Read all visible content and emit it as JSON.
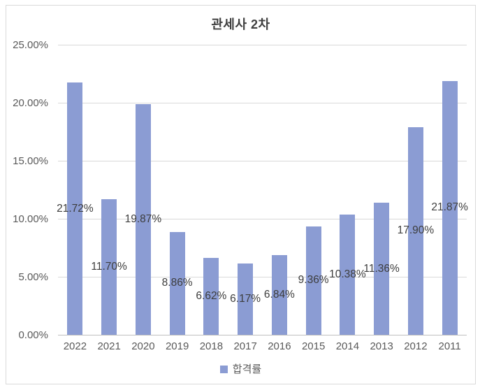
{
  "chart_data": {
    "type": "bar",
    "title": "관세사 2차",
    "xlabel": "",
    "ylabel": "",
    "categories": [
      "2022",
      "2021",
      "2020",
      "2019",
      "2018",
      "2017",
      "2016",
      "2015",
      "2014",
      "2013",
      "2012",
      "2011"
    ],
    "series": [
      {
        "name": "합격률",
        "values": [
          21.72,
          11.7,
          19.87,
          8.86,
          6.62,
          6.17,
          6.84,
          9.36,
          10.38,
          11.36,
          17.9,
          21.87
        ]
      }
    ],
    "data_labels": [
      "21.72%",
      "11.70%",
      "19.87%",
      "8.86%",
      "6.62%",
      "6.17%",
      "6.84%",
      "9.36%",
      "10.38%",
      "11.36%",
      "17.90%",
      "21.87%"
    ],
    "y_ticks": [
      "25.00%",
      "20.00%",
      "15.00%",
      "10.00%",
      "5.00%",
      "0.00%"
    ],
    "ylim": [
      0,
      25
    ],
    "grid": true,
    "legend_position": "bottom",
    "legend_label": "합격률",
    "data_label_position": "inside-center",
    "colors": {
      "bar": "#8B9CD3",
      "gridline": "#D9D9D9",
      "axis_line": "#BFBFBF",
      "title": "#404040",
      "tick_label": "#595959",
      "data_label": "#3d3d3d",
      "frame_border": "#D9D9D9",
      "background": "#ffffff"
    }
  }
}
